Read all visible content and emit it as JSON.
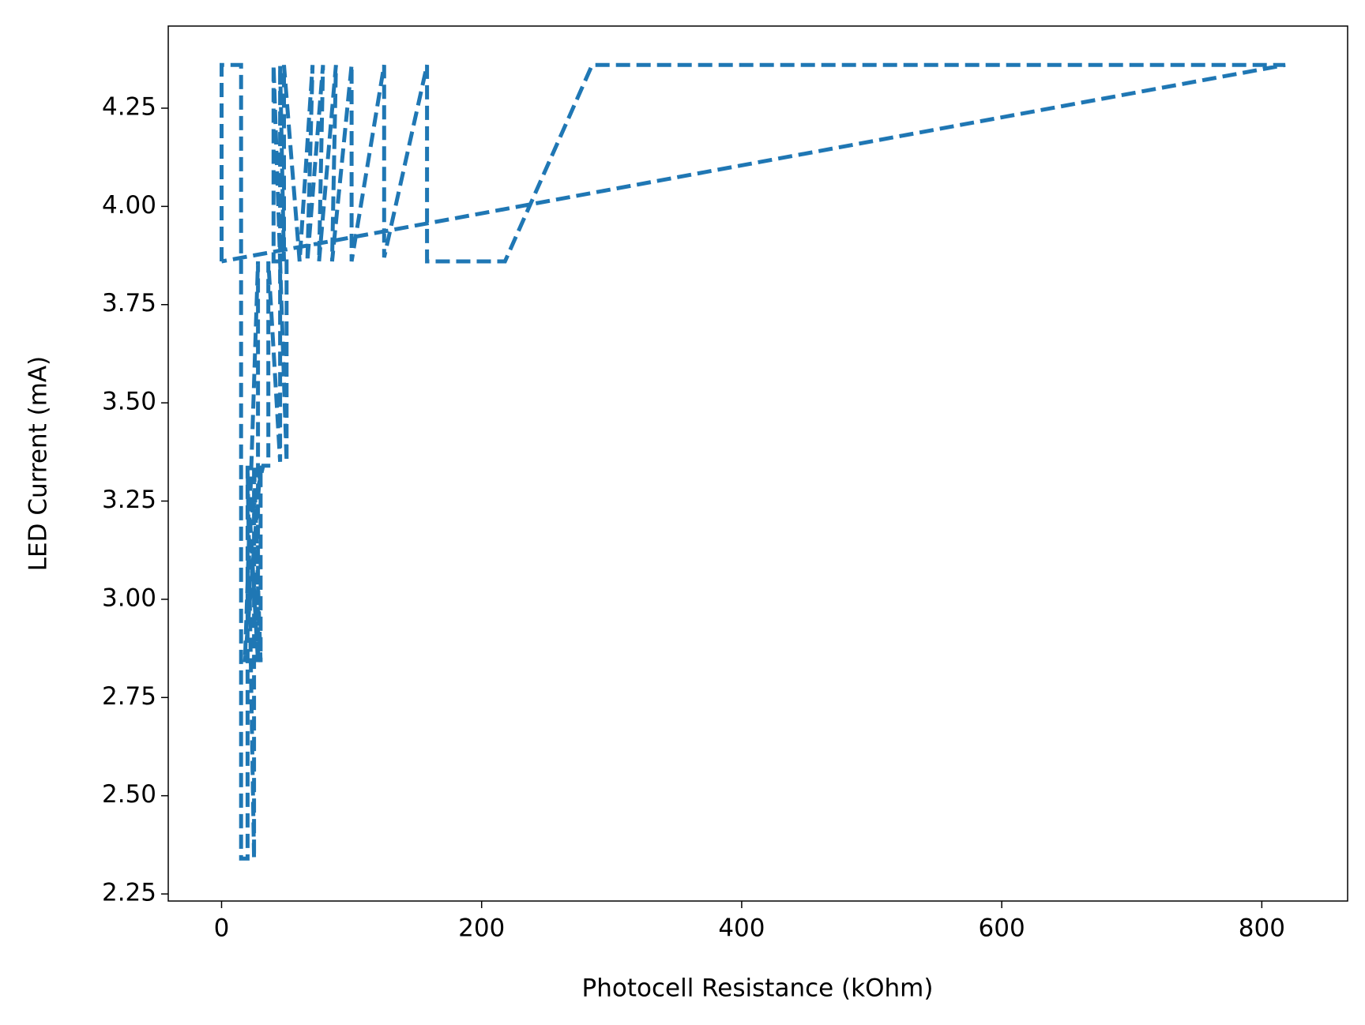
{
  "chart_data": {
    "type": "line",
    "xlabel": "Photocell Resistance (kOhm)",
    "ylabel": "LED Current (mA)",
    "series": [
      {
        "color": "#1f77b4",
        "x": [
          0,
          0,
          15,
          15,
          20,
          20,
          25,
          25,
          30,
          30,
          18,
          28,
          28,
          22,
          32,
          36,
          36,
          45,
          45,
          50,
          50,
          40,
          40,
          45,
          45,
          48,
          48,
          60,
          70,
          66,
          78,
          75,
          88,
          85,
          100,
          100,
          125,
          125,
          158,
          158,
          218,
          285,
          818,
          0
        ],
        "values": [
          3.86,
          4.36,
          4.36,
          2.34,
          2.34,
          3.34,
          2.34,
          3.34,
          2.84,
          3.34,
          2.84,
          3.86,
          2.84,
          3.2,
          3.34,
          3.34,
          3.86,
          3.35,
          3.86,
          3.35,
          3.86,
          3.86,
          4.36,
          3.86,
          4.36,
          3.86,
          4.36,
          3.86,
          4.36,
          3.86,
          4.36,
          3.86,
          4.36,
          3.86,
          4.36,
          3.86,
          4.36,
          3.87,
          4.36,
          3.86,
          3.86,
          4.36,
          4.36,
          3.86
        ]
      }
    ],
    "xlim": [
      -41,
      866
    ],
    "ylim": [
      2.232,
      4.459
    ],
    "xticks": [
      0,
      200,
      400,
      600,
      800
    ],
    "yticks": [
      2.25,
      {
        "value": 2.5,
        "label": "2.50"
      },
      2.75,
      {
        "value": 3,
        "label": "3.00"
      },
      3.25,
      {
        "value": 3.5,
        "label": "3.50"
      },
      3.75,
      {
        "value": 4,
        "label": "4.00"
      },
      4.25
    ],
    "grid": false,
    "linestyle": "dashed"
  }
}
